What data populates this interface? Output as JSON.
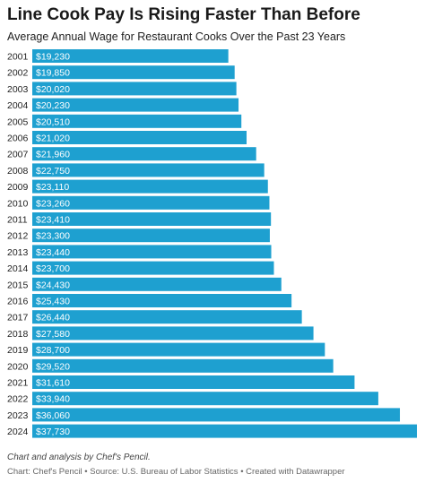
{
  "chart_data": {
    "type": "bar",
    "orientation": "horizontal",
    "title": "Line Cook Pay Is Rising Faster Than Before",
    "subtitle": "Average Annual Wage for Restaurant Cooks Over the Past 23 Years",
    "categories": [
      "2001",
      "2002",
      "2003",
      "2004",
      "2005",
      "2006",
      "2007",
      "2008",
      "2009",
      "2010",
      "2011",
      "2012",
      "2013",
      "2014",
      "2015",
      "2016",
      "2017",
      "2018",
      "2019",
      "2020",
      "2021",
      "2022",
      "2023",
      "2024"
    ],
    "values": [
      19230,
      19850,
      20020,
      20230,
      20510,
      21020,
      21960,
      22750,
      23110,
      23260,
      23410,
      23300,
      23440,
      23700,
      24430,
      25430,
      26440,
      27580,
      28700,
      29520,
      31610,
      33940,
      36060,
      37730
    ],
    "value_labels": [
      "$19,230",
      "$19,850",
      "$20,020",
      "$20,230",
      "$20,510",
      "$21,020",
      "$21,960",
      "$22,750",
      "$23,110",
      "$23,260",
      "$23,410",
      "$23,300",
      "$23,440",
      "$23,700",
      "$24,430",
      "$25,430",
      "$26,440",
      "$27,580",
      "$28,700",
      "$29,520",
      "$31,610",
      "$33,940",
      "$36,060",
      "$37,730"
    ],
    "xlim": [
      0,
      37730
    ],
    "xlabel": "",
    "ylabel": "",
    "grid": false,
    "bar_color": "#1ea0d0"
  },
  "footer": {
    "note": "Chart and analysis by Chef's Pencil.",
    "source_prefix": "Chart: ",
    "source_author": "Chef's Pencil",
    "source_sep1": " • Source: ",
    "source_org": "U.S. Bureau of Labor Statistics",
    "source_sep2": " • Created with Datawrapper"
  }
}
